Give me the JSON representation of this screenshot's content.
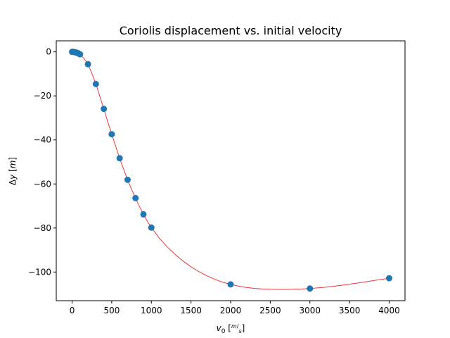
{
  "chart_data": {
    "type": "scatter",
    "title": "Coriolis displacement vs. initial velocity",
    "xlabel": {
      "base": "v",
      "sub": "0",
      "unit_num": "m",
      "unit_den": "s"
    },
    "ylabel": {
      "delta": "Δ",
      "var": "y",
      "unit": "m"
    },
    "xlim": [
      -200,
      4200
    ],
    "ylim": [
      -113,
      5
    ],
    "xticks": [
      0,
      500,
      1000,
      1500,
      2000,
      2500,
      3000,
      3500,
      4000
    ],
    "yticks": [
      0,
      -20,
      -40,
      -60,
      -80,
      -100
    ],
    "xtick_labels": [
      "0",
      "500",
      "1000",
      "1500",
      "2000",
      "2500",
      "3000",
      "3500",
      "4000"
    ],
    "ytick_labels": [
      "0",
      "−20",
      "−40",
      "−60",
      "−80",
      "−100"
    ],
    "grid": false,
    "series": [
      {
        "kind": "scatter",
        "color": "#1f77b4",
        "points": [
          [
            0,
            0
          ],
          [
            10,
            0
          ],
          [
            20,
            -0.05
          ],
          [
            30,
            -0.1
          ],
          [
            40,
            -0.2
          ],
          [
            50,
            -0.3
          ],
          [
            60,
            -0.4
          ],
          [
            70,
            -0.5
          ],
          [
            80,
            -0.7
          ],
          [
            90,
            -0.9
          ],
          [
            100,
            -1.1
          ],
          [
            200,
            -5.6
          ],
          [
            300,
            -14.6
          ],
          [
            400,
            -25.9
          ],
          [
            500,
            -37.4
          ],
          [
            600,
            -48.3
          ],
          [
            700,
            -58.1
          ],
          [
            800,
            -66.4
          ],
          [
            900,
            -73.8
          ],
          [
            1000,
            -79.8
          ],
          [
            2000,
            -105.6
          ],
          [
            3000,
            -107.5
          ],
          [
            4000,
            -102.8
          ]
        ]
      },
      {
        "kind": "line",
        "color": "#e8383d",
        "points": [
          [
            0,
            0
          ],
          [
            50,
            -0.3
          ],
          [
            100,
            -1.1
          ],
          [
            150,
            -3.0
          ],
          [
            200,
            -5.6
          ],
          [
            250,
            -9.8
          ],
          [
            300,
            -14.6
          ],
          [
            350,
            -20.2
          ],
          [
            400,
            -25.9
          ],
          [
            450,
            -31.8
          ],
          [
            500,
            -37.4
          ],
          [
            550,
            -42.9
          ],
          [
            600,
            -48.3
          ],
          [
            650,
            -53.3
          ],
          [
            700,
            -58.1
          ],
          [
            750,
            -62.4
          ],
          [
            800,
            -66.4
          ],
          [
            850,
            -70.2
          ],
          [
            900,
            -73.8
          ],
          [
            950,
            -77.0
          ],
          [
            1000,
            -79.8
          ],
          [
            1100,
            -84.6
          ],
          [
            1200,
            -88.6
          ],
          [
            1300,
            -92.0
          ],
          [
            1400,
            -95.0
          ],
          [
            1500,
            -97.6
          ],
          [
            1600,
            -99.8
          ],
          [
            1700,
            -101.7
          ],
          [
            1800,
            -103.3
          ],
          [
            1900,
            -104.6
          ],
          [
            2000,
            -105.6
          ],
          [
            2100,
            -106.4
          ],
          [
            2200,
            -107.0
          ],
          [
            2300,
            -107.4
          ],
          [
            2400,
            -107.7
          ],
          [
            2500,
            -107.8
          ],
          [
            2600,
            -107.9
          ],
          [
            2700,
            -107.9
          ],
          [
            2800,
            -107.8
          ],
          [
            2900,
            -107.7
          ],
          [
            3000,
            -107.5
          ],
          [
            3200,
            -106.9
          ],
          [
            3400,
            -106.0
          ],
          [
            3600,
            -105.0
          ],
          [
            3800,
            -103.9
          ],
          [
            4000,
            -102.8
          ]
        ]
      }
    ]
  }
}
